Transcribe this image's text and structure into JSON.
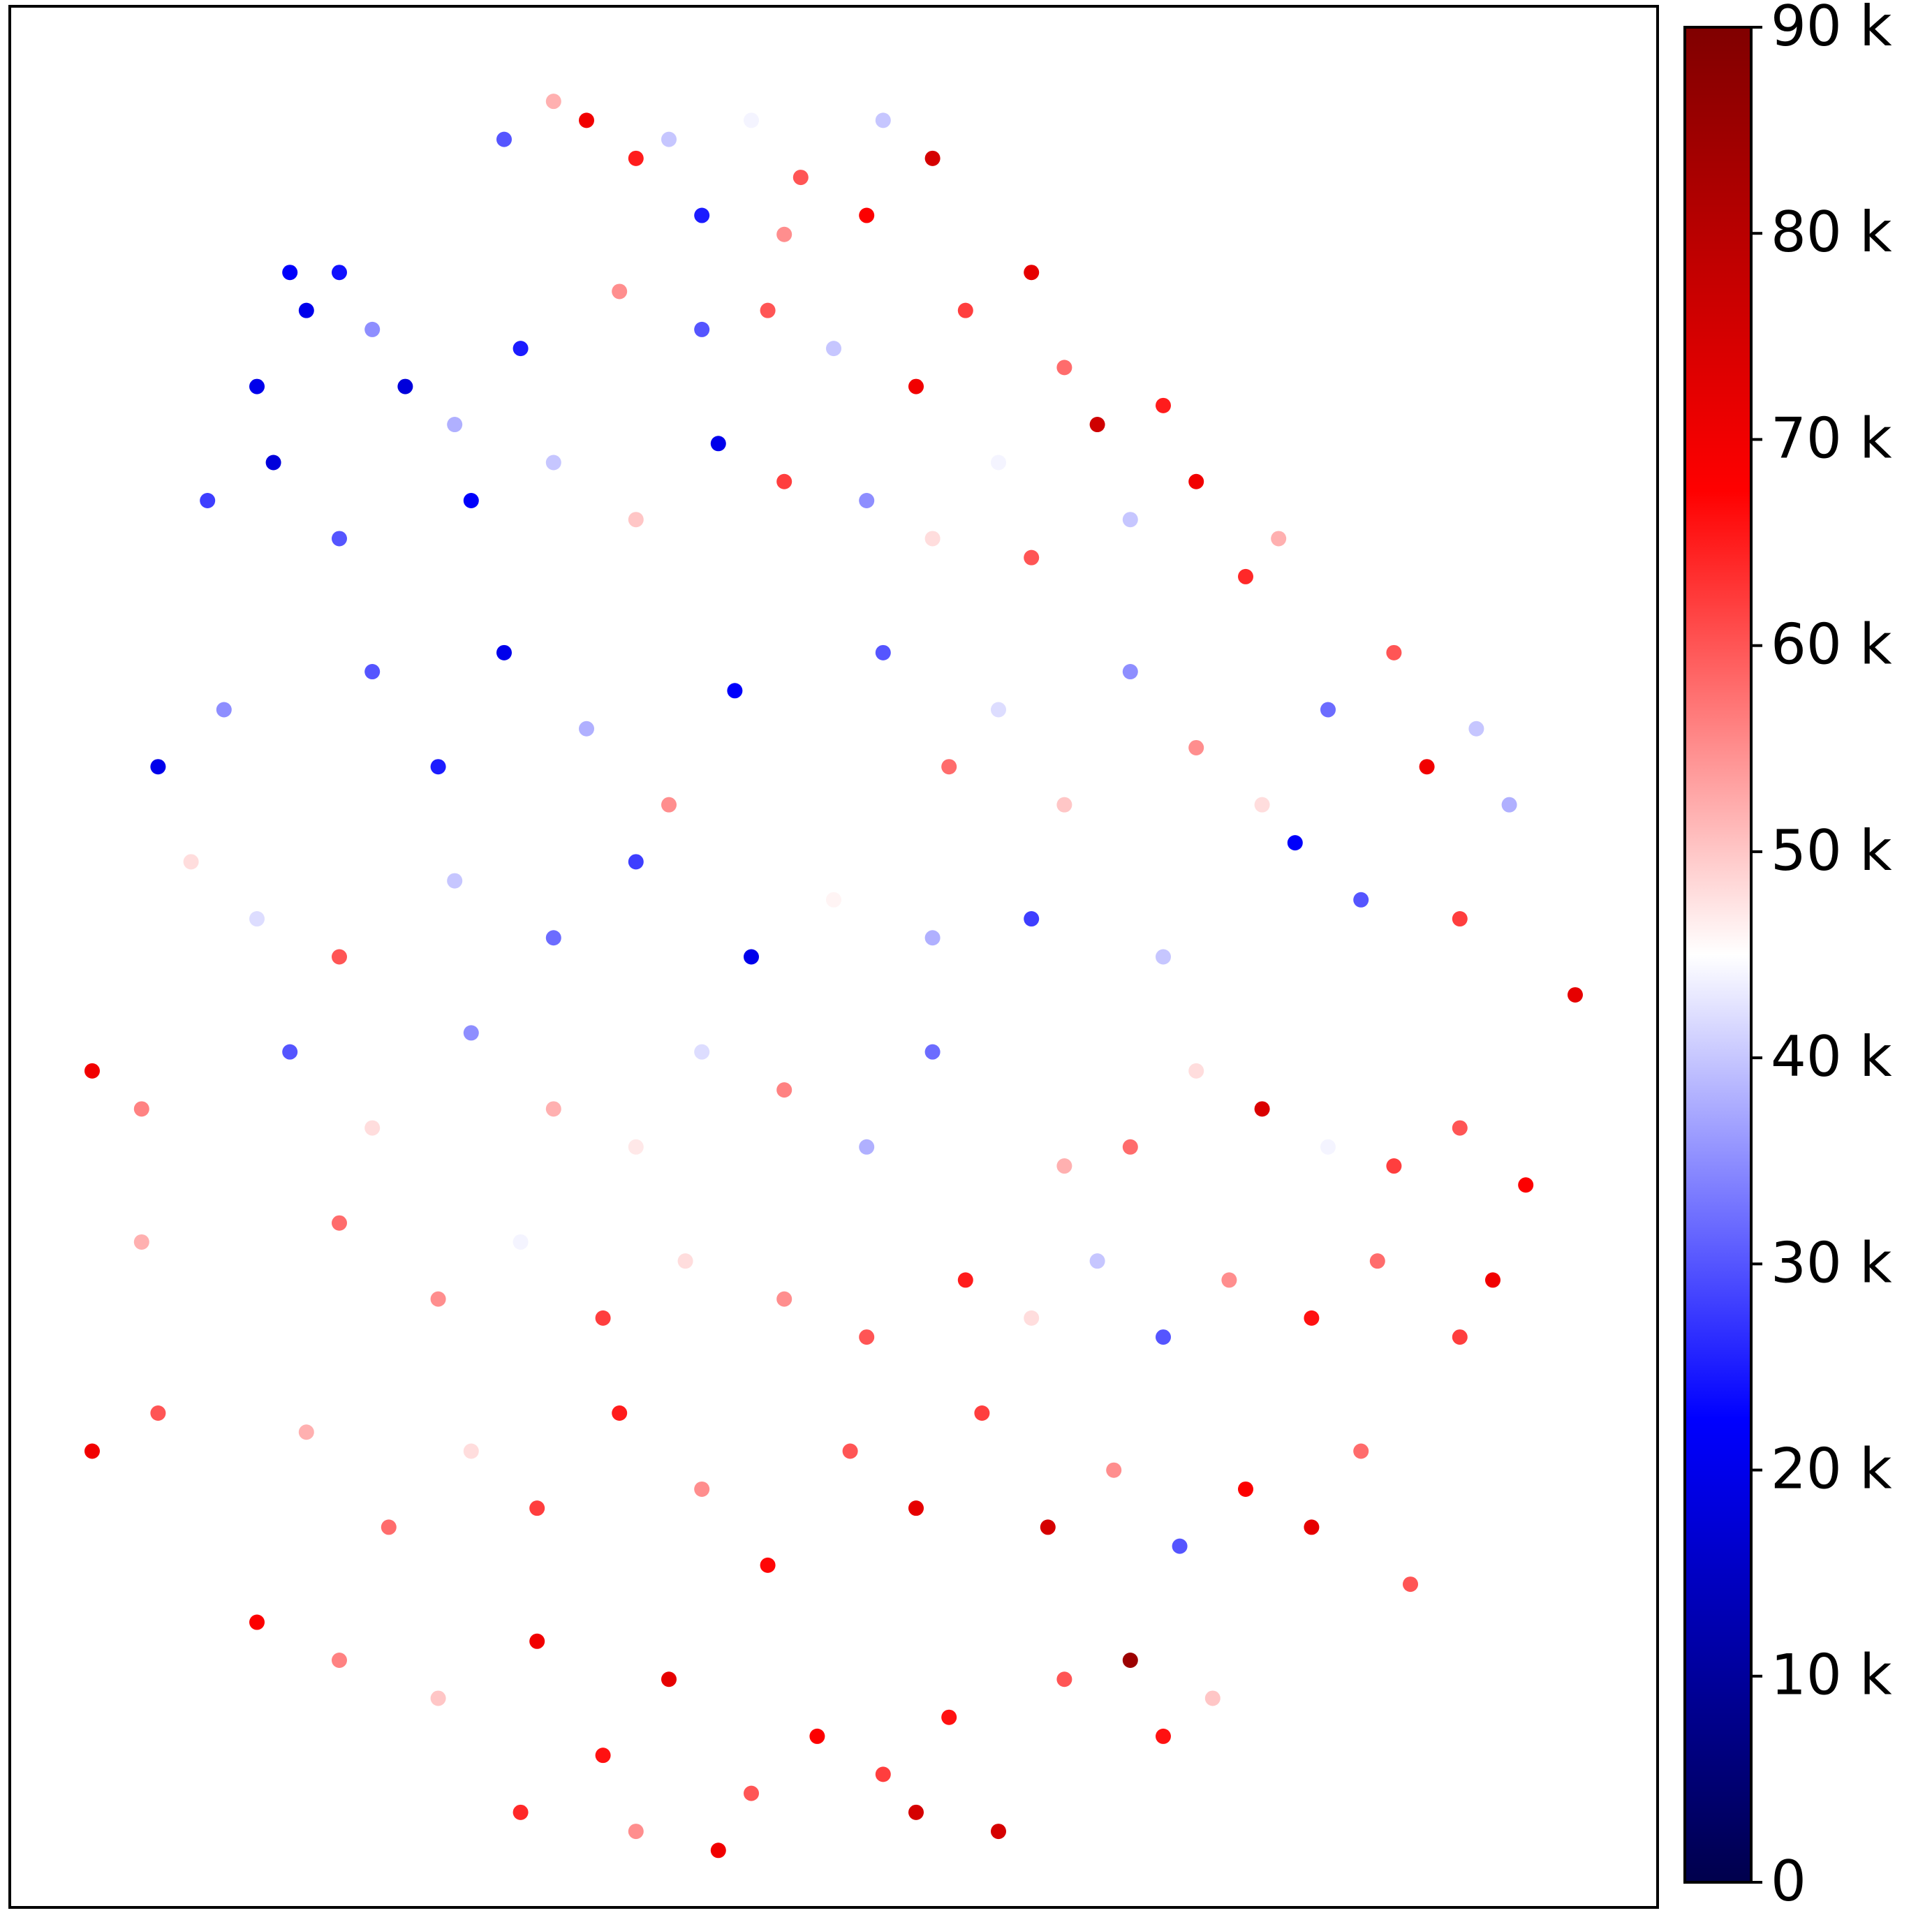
{
  "chart_data": {
    "type": "scatter",
    "xlim": [
      0,
      100
    ],
    "ylim": [
      0,
      100
    ],
    "colormap": "seismic",
    "clim": [
      0,
      90000
    ],
    "cticks": [
      0,
      {
        "value": 10000,
        "label": "10 k"
      },
      {
        "value": 20000,
        "label": "20 k"
      },
      {
        "value": 30000,
        "label": "30 k"
      },
      {
        "value": 40000,
        "label": "40 k"
      },
      {
        "value": 50000,
        "label": "50 k"
      },
      {
        "value": 60000,
        "label": "60 k"
      },
      {
        "value": 70000,
        "label": "70 k"
      },
      {
        "value": 80000,
        "label": "80 k"
      },
      {
        "value": 90000,
        "label": "90 k"
      }
    ],
    "x": [
      30,
      33,
      35,
      38,
      40,
      42,
      45,
      48,
      52,
      56,
      53,
      47,
      17,
      18,
      20,
      22,
      15,
      24,
      27,
      31,
      35,
      37,
      42,
      46,
      50,
      55,
      58,
      62,
      64,
      66,
      70,
      60,
      12,
      16,
      20,
      28,
      33,
      38,
      43,
      47,
      52,
      56,
      62,
      68,
      72,
      75,
      77,
      9,
      13,
      18,
      22,
      26,
      30,
      35,
      40,
      44,
      49,
      53,
      57,
      60,
      64,
      68,
      72,
      76,
      80,
      84,
      86,
      89,
      91,
      78,
      82,
      11,
      15,
      20,
      27,
      33,
      38,
      45,
      50,
      56,
      62,
      70,
      88,
      92,
      95,
      5,
      8,
      12,
      17,
      22,
      28,
      33,
      38,
      42,
      47,
      52,
      56,
      61,
      64,
      68,
      72,
      76,
      80,
      84,
      88,
      92,
      8,
      14,
      20,
      26,
      31,
      36,
      41,
      47,
      52,
      58,
      62,
      66,
      70,
      74,
      79,
      83,
      88,
      90,
      5,
      9,
      13,
      18,
      23,
      28,
      32,
      37,
      42,
      46,
      51,
      55,
      59,
      63,
      67,
      71,
      75,
      79,
      82,
      85,
      15,
      20,
      26,
      32,
      36,
      40,
      45,
      49,
      53,
      57,
      60,
      64,
      68,
      70,
      31,
      38,
      43,
      55,
      61,
      73
    ],
    "y": [
      93,
      95,
      94,
      92,
      93,
      89,
      94,
      91,
      89,
      92,
      94,
      88,
      86,
      84,
      86,
      83,
      80,
      80,
      78,
      82,
      80,
      85,
      83,
      84,
      82,
      80,
      84,
      86,
      81,
      78,
      79,
      76,
      74,
      76,
      72,
      74,
      76,
      73,
      77,
      75,
      74,
      72,
      71,
      73,
      75,
      70,
      72,
      60,
      63,
      58,
      65,
      60,
      66,
      62,
      58,
      64,
      61,
      66,
      60,
      63,
      58,
      65,
      61,
      58,
      63,
      66,
      60,
      62,
      58,
      56,
      53,
      55,
      52,
      50,
      54,
      51,
      55,
      50,
      53,
      51,
      52,
      50,
      52,
      54,
      48,
      44,
      42,
      40,
      45,
      41,
      46,
      42,
      40,
      45,
      43,
      40,
      45,
      42,
      39,
      40,
      44,
      42,
      40,
      39,
      41,
      38,
      35,
      33,
      36,
      32,
      35,
      31,
      34,
      32,
      30,
      33,
      31,
      34,
      30,
      33,
      31,
      34,
      30,
      33,
      24,
      26,
      22,
      25,
      20,
      24,
      21,
      26,
      22,
      18,
      24,
      21,
      26,
      20,
      23,
      19,
      22,
      20,
      24,
      17,
      15,
      13,
      11,
      14,
      8,
      12,
      6,
      9,
      7,
      10,
      4,
      12,
      13,
      9,
      5,
      4,
      3,
      5,
      8,
      11
    ],
    "values": [
      30000,
      52000,
      70000,
      65000,
      40000,
      25000,
      44000,
      60000,
      68000,
      75000,
      40000,
      55000,
      22000,
      20000,
      24000,
      35000,
      20000,
      18000,
      38000,
      25000,
      45000,
      55000,
      30000,
      60000,
      40000,
      70000,
      62000,
      72000,
      58000,
      76000,
      65000,
      44000,
      28000,
      18000,
      30000,
      22000,
      40000,
      50000,
      20000,
      62000,
      35000,
      48000,
      60000,
      40000,
      70000,
      64000,
      52000,
      20000,
      35000,
      45000,
      30000,
      25000,
      20000,
      38000,
      55000,
      22000,
      45000,
      30000,
      58000,
      42000,
      50000,
      35000,
      55000,
      48000,
      32000,
      60000,
      70000,
      40000,
      38000,
      22000,
      30000,
      48000,
      42000,
      60000,
      40000,
      32000,
      28000,
      20000,
      46000,
      38000,
      28000,
      40000,
      62000,
      45000,
      72000,
      70000,
      56000,
      45000,
      30000,
      48000,
      35000,
      52000,
      47000,
      42000,
      56000,
      38000,
      32000,
      45000,
      52000,
      58000,
      48000,
      74000,
      44000,
      62000,
      60000,
      68000,
      52000,
      45000,
      58000,
      55000,
      44000,
      62000,
      48000,
      55000,
      60000,
      65000,
      48000,
      40000,
      30000,
      55000,
      66000,
      58000,
      62000,
      70000,
      70000,
      60000,
      45000,
      52000,
      58000,
      48000,
      62000,
      65000,
      55000,
      67000,
      60000,
      72000,
      62000,
      75000,
      55000,
      30000,
      68000,
      72000,
      58000,
      60000,
      68000,
      56000,
      50000,
      70000,
      66000,
      72000,
      60000,
      68000,
      62000,
      66000,
      75000,
      60000,
      85000,
      66000,
      64000,
      55000,
      70000,
      75000,
      45000,
      50000
    ]
  }
}
